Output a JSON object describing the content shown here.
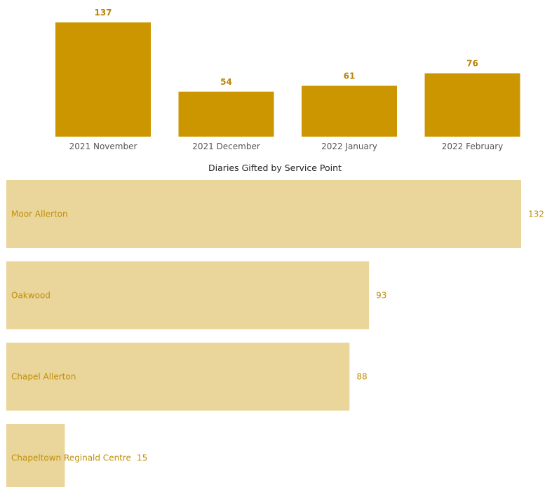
{
  "chart_data": [
    {
      "type": "bar",
      "title": "",
      "xlabel": "",
      "ylabel": "",
      "categories": [
        "2021 November",
        "2021 December",
        "2022 January",
        "2022 February"
      ],
      "values": [
        137,
        54,
        61,
        76
      ],
      "ylim": [
        0,
        137
      ],
      "grid": false,
      "legend": "none",
      "data_labels": true,
      "color": "#cc9600"
    },
    {
      "type": "bar",
      "orientation": "horizontal",
      "title": "Diaries Gifted by Service Point",
      "xlabel": "",
      "ylabel": "",
      "categories": [
        "Moor Allerton",
        "Oakwood",
        "Chapel Allerton",
        "Chapeltown Reginald Centre"
      ],
      "values": [
        132,
        93,
        88,
        15
      ],
      "xlim": [
        0,
        132
      ],
      "grid": false,
      "legend": "none",
      "data_labels": true,
      "color": "#ead59b",
      "label_color": "#c08f06"
    }
  ]
}
